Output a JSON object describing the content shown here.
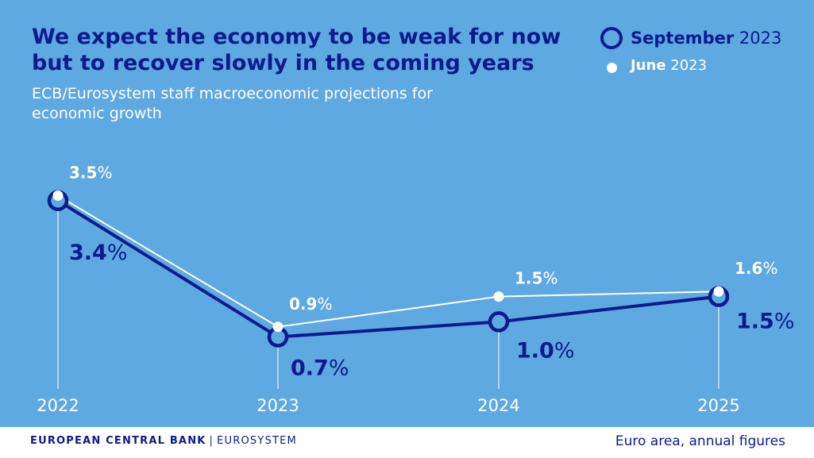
{
  "title": "We expect the economy to be weak for now but to recover slowly in the coming years",
  "subtitle": "ECB/Eurosystem staff macroeconomic projections for economic growth",
  "legend": {
    "september": {
      "month": "September",
      "year": "2023"
    },
    "june": {
      "month": "June",
      "year": "2023"
    }
  },
  "footer": {
    "org": "EUROPEAN CENTRAL BANK",
    "separator": "|",
    "sub": "EUROSYSTEM",
    "note": "Euro area, annual figures"
  },
  "colors": {
    "background": "#5ea9e2",
    "september": "#0b1b8a",
    "june": "#ffffff"
  },
  "chart_data": {
    "type": "line",
    "title": "We expect the economy to be weak for now but to recover slowly in the coming years",
    "subtitle": "ECB/Eurosystem staff macroeconomic projections for economic growth",
    "categories": [
      "2022",
      "2023",
      "2024",
      "2025"
    ],
    "unit": "%",
    "series": [
      {
        "name": "September 2023",
        "values": [
          3.4,
          0.7,
          1.0,
          1.5
        ],
        "labels": [
          "3.4",
          "0.7",
          "1.0",
          "1.5"
        ],
        "color": "#0b1b8a"
      },
      {
        "name": "June 2023",
        "values": [
          3.5,
          0.9,
          1.5,
          1.6
        ],
        "labels": [
          "3.5",
          "0.9",
          "1.5",
          "1.6"
        ],
        "color": "#ffffff"
      }
    ],
    "grid": false,
    "legend": "top-right"
  }
}
